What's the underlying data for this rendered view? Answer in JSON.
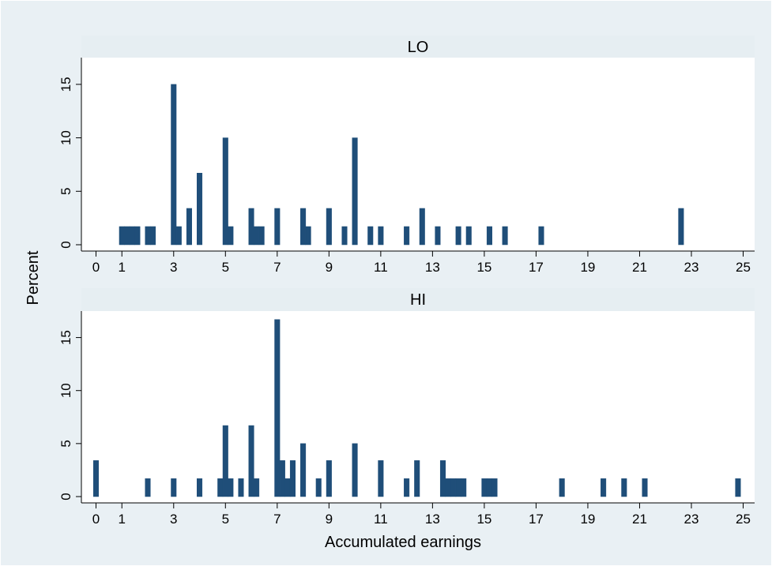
{
  "chart_data": {
    "type": "bar",
    "ylabel": "Percent",
    "xlabel": "Accumulated earnings",
    "x_ticks": [
      "0",
      "1",
      "3",
      "5",
      "7",
      "9",
      "11",
      "13",
      "15",
      "17",
      "19",
      "21",
      "23",
      "25"
    ],
    "y_ticks": [
      "0",
      "5",
      "10",
      "15"
    ],
    "xlim": [
      -0.5,
      25.5
    ],
    "ylim": [
      0,
      17.5
    ],
    "bar_color": "#1f4e79",
    "panel_header_color": "#e6eef2",
    "background_color": "#e9f0f4",
    "panels": [
      {
        "label": "LO",
        "bars": [
          {
            "x": 1.0,
            "y": 1.7
          },
          {
            "x": 1.2,
            "y": 1.7
          },
          {
            "x": 1.4,
            "y": 1.7
          },
          {
            "x": 1.6,
            "y": 1.7
          },
          {
            "x": 2.0,
            "y": 1.7
          },
          {
            "x": 2.2,
            "y": 1.7
          },
          {
            "x": 3.0,
            "y": 15.0
          },
          {
            "x": 3.2,
            "y": 1.7
          },
          {
            "x": 3.6,
            "y": 3.4
          },
          {
            "x": 4.0,
            "y": 6.7
          },
          {
            "x": 5.0,
            "y": 10.0
          },
          {
            "x": 5.2,
            "y": 1.7
          },
          {
            "x": 6.0,
            "y": 3.4
          },
          {
            "x": 6.2,
            "y": 1.7
          },
          {
            "x": 6.4,
            "y": 1.7
          },
          {
            "x": 7.0,
            "y": 3.4
          },
          {
            "x": 8.0,
            "y": 3.4
          },
          {
            "x": 8.2,
            "y": 1.7
          },
          {
            "x": 9.0,
            "y": 3.4
          },
          {
            "x": 9.6,
            "y": 1.7
          },
          {
            "x": 10.0,
            "y": 10.0
          },
          {
            "x": 10.6,
            "y": 1.7
          },
          {
            "x": 11.0,
            "y": 1.7
          },
          {
            "x": 12.0,
            "y": 1.7
          },
          {
            "x": 12.6,
            "y": 3.4
          },
          {
            "x": 13.2,
            "y": 1.7
          },
          {
            "x": 14.0,
            "y": 1.7
          },
          {
            "x": 14.4,
            "y": 1.7
          },
          {
            "x": 15.2,
            "y": 1.7
          },
          {
            "x": 15.8,
            "y": 1.7
          },
          {
            "x": 17.2,
            "y": 1.7
          },
          {
            "x": 22.6,
            "y": 3.4
          }
        ]
      },
      {
        "label": "HI",
        "bars": [
          {
            "x": 0.0,
            "y": 3.4
          },
          {
            "x": 2.0,
            "y": 1.7
          },
          {
            "x": 3.0,
            "y": 1.7
          },
          {
            "x": 4.0,
            "y": 1.7
          },
          {
            "x": 4.8,
            "y": 1.7
          },
          {
            "x": 5.0,
            "y": 6.7
          },
          {
            "x": 5.2,
            "y": 1.7
          },
          {
            "x": 5.6,
            "y": 1.7
          },
          {
            "x": 6.0,
            "y": 6.7
          },
          {
            "x": 6.2,
            "y": 1.7
          },
          {
            "x": 7.0,
            "y": 16.7
          },
          {
            "x": 7.2,
            "y": 3.4
          },
          {
            "x": 7.4,
            "y": 1.7
          },
          {
            "x": 7.6,
            "y": 3.4
          },
          {
            "x": 8.0,
            "y": 5.0
          },
          {
            "x": 8.6,
            "y": 1.7
          },
          {
            "x": 9.0,
            "y": 3.4
          },
          {
            "x": 10.0,
            "y": 5.0
          },
          {
            "x": 11.0,
            "y": 3.4
          },
          {
            "x": 12.0,
            "y": 1.7
          },
          {
            "x": 12.4,
            "y": 3.4
          },
          {
            "x": 13.4,
            "y": 3.4
          },
          {
            "x": 13.6,
            "y": 1.7
          },
          {
            "x": 13.8,
            "y": 1.7
          },
          {
            "x": 14.0,
            "y": 1.7
          },
          {
            "x": 14.2,
            "y": 1.7
          },
          {
            "x": 15.0,
            "y": 1.7
          },
          {
            "x": 15.2,
            "y": 1.7
          },
          {
            "x": 15.4,
            "y": 1.7
          },
          {
            "x": 18.0,
            "y": 1.7
          },
          {
            "x": 19.6,
            "y": 1.7
          },
          {
            "x": 20.4,
            "y": 1.7
          },
          {
            "x": 21.2,
            "y": 1.7
          },
          {
            "x": 24.8,
            "y": 1.7
          }
        ]
      }
    ]
  }
}
